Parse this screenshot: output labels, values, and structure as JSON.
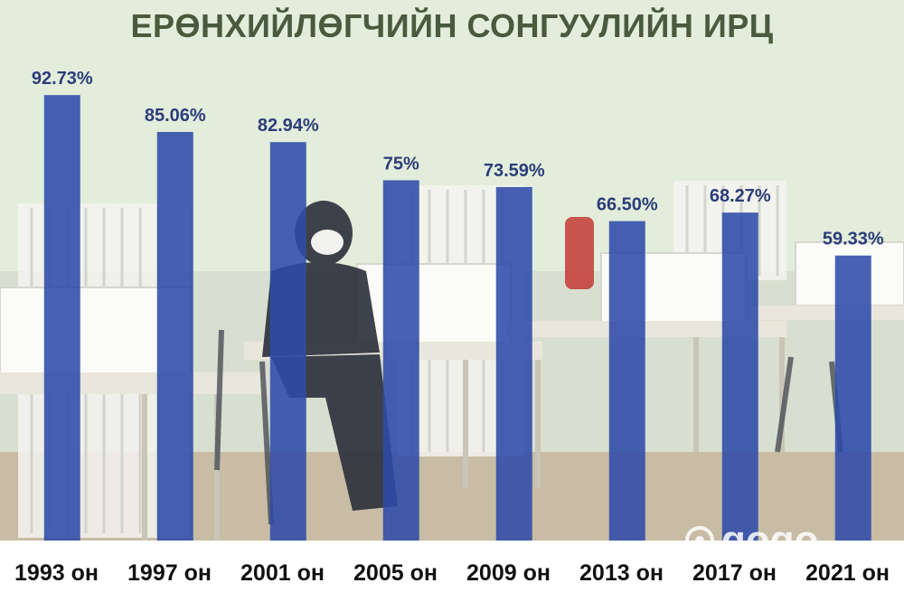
{
  "title": "ЕРӨНХИЙЛӨГЧИЙН СОНГУУЛИЙН ИРЦ",
  "watermark": "gogo",
  "colors": {
    "bar": "#2e4ba8",
    "title": "#4a5a3e",
    "label": "#2b3d7a"
  },
  "chart_data": {
    "type": "bar",
    "title": "ЕРӨНХИЙЛӨГЧИЙН СОНГУУЛИЙН ИРЦ",
    "categories": [
      "1993 он",
      "1997 он",
      "2001 он",
      "2005 он",
      "2009 он",
      "2013 он",
      "2017 он",
      "2021 он"
    ],
    "values": [
      92.73,
      85.06,
      82.94,
      75,
      73.59,
      66.5,
      68.27,
      59.33
    ],
    "data_labels": [
      "92.73%",
      "85.06%",
      "82.94%",
      "75%",
      "73.59%",
      "66.50%",
      "68.27%",
      "59.33%"
    ],
    "xlabel": "",
    "ylabel": "",
    "ylim": [
      0,
      105
    ],
    "grid": false,
    "legend": "none"
  }
}
